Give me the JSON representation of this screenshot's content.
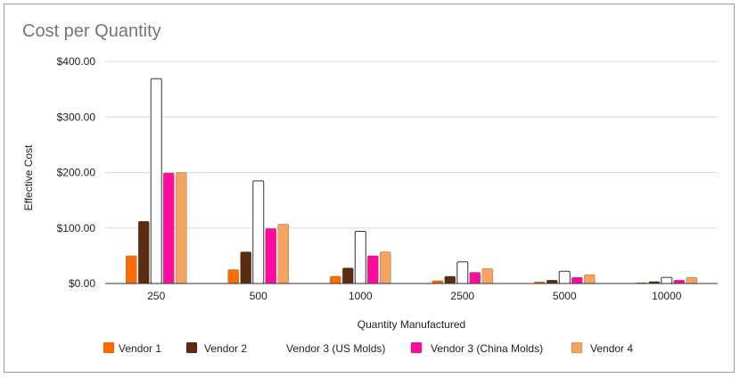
{
  "chart_data": {
    "type": "bar",
    "title": "Cost per Quantity",
    "xlabel": "Quantity Manufactured",
    "ylabel": "Effective Cost",
    "categories": [
      "250",
      "500",
      "1000",
      "2500",
      "5000",
      "10000"
    ],
    "ylim": [
      0,
      400
    ],
    "yticks": [
      {
        "value": 0,
        "label": "$0.00"
      },
      {
        "value": 100,
        "label": "$100.00"
      },
      {
        "value": 200,
        "label": "$200.00"
      },
      {
        "value": 300,
        "label": "$300.00"
      },
      {
        "value": 400,
        "label": "$400.00"
      }
    ],
    "grid": true,
    "legend_position": "bottom",
    "series": [
      {
        "name": "Vendor 1",
        "color": "#ff6d01",
        "values": [
          50,
          25,
          13,
          5,
          3,
          1.5
        ]
      },
      {
        "name": "Vendor 2",
        "color": "#5b2c0f",
        "values": [
          112,
          57,
          28,
          13,
          6,
          3.5
        ]
      },
      {
        "name": "Vendor 3 (US Molds)",
        "color": "#ffffff",
        "values": [
          369,
          185,
          94,
          39,
          22,
          11
        ]
      },
      {
        "name": "Vendor 3 (China Molds)",
        "color": "#ff0c9c",
        "values": [
          199,
          99,
          50,
          20,
          11,
          6
        ]
      },
      {
        "name": "Vendor 4",
        "color": "#f6a35f",
        "values": [
          200,
          107,
          57,
          27,
          16,
          11
        ]
      }
    ]
  }
}
